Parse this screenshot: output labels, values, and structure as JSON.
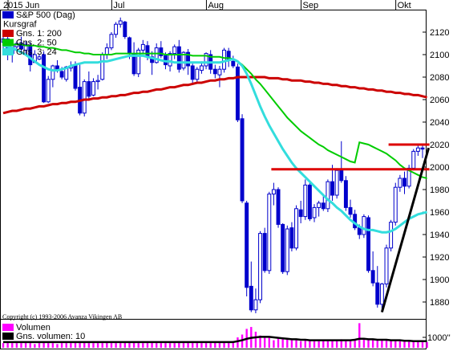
{
  "chart_data": {
    "type": "candlestick",
    "x_labels": [
      "2015 Jun",
      "Jul",
      "Aug",
      "Sep",
      "Okt"
    ],
    "y_ticks": [
      1880,
      1900,
      1920,
      1940,
      1960,
      1980,
      2000,
      2020,
      2040,
      2060,
      2080,
      2100,
      2120
    ],
    "ylim": [
      1865,
      2140
    ],
    "legend": [
      {
        "label": "S&P 500 (Dag)",
        "color": "#0000cc"
      },
      {
        "label": "Kursgraf",
        "color": ""
      },
      {
        "label": "Gns. 1: 200",
        "color": "#cc0000"
      },
      {
        "label": "Gns. 2: 50",
        "color": "#00cc00"
      },
      {
        "label": "Gns. 3: 24",
        "color": "#33dddd"
      }
    ],
    "copyright": "Copyright (c) 1993-2006 Avanza Vikingen AB",
    "candles": [
      [
        2111,
        2119,
        2105,
        2114
      ],
      [
        2114,
        2118,
        2095,
        2100
      ],
      [
        2101,
        2113,
        2093,
        2108
      ],
      [
        2107,
        2112,
        2104,
        2110
      ],
      [
        2110,
        2116,
        2103,
        2105
      ],
      [
        2104,
        2112,
        2099,
        2109
      ],
      [
        2108,
        2111,
        2085,
        2091
      ],
      [
        2093,
        2104,
        2093,
        2100
      ],
      [
        2096,
        2100,
        2095,
        2098
      ],
      [
        2100,
        2103,
        2057,
        2058
      ],
      [
        2058,
        2081,
        2057,
        2078
      ],
      [
        2078,
        2091,
        2071,
        2090
      ],
      [
        2090,
        2095,
        2084,
        2086
      ],
      [
        2085,
        2089,
        2078,
        2080
      ],
      [
        2078,
        2090,
        2076,
        2089
      ],
      [
        2088,
        2094,
        2085,
        2090
      ],
      [
        2090,
        2094,
        2068,
        2070
      ],
      [
        2071,
        2091,
        2046,
        2048
      ],
      [
        2048,
        2078,
        2045,
        2076
      ],
      [
        2076,
        2085,
        2061,
        2063
      ],
      [
        2064,
        2079,
        2063,
        2076
      ],
      [
        2076,
        2082,
        2069,
        2077
      ],
      [
        2078,
        2102,
        2077,
        2100
      ],
      [
        2100,
        2110,
        2096,
        2106
      ],
      [
        2106,
        2120,
        2104,
        2118
      ],
      [
        2118,
        2129,
        2115,
        2127
      ],
      [
        2127,
        2133,
        2124,
        2130
      ],
      [
        2129,
        2130,
        2114,
        2116
      ],
      [
        2115,
        2116,
        2096,
        2101
      ],
      [
        2101,
        2111,
        2081,
        2083
      ],
      [
        2083,
        2106,
        2080,
        2104
      ],
      [
        2104,
        2113,
        2101,
        2109
      ],
      [
        2108,
        2112,
        2095,
        2098
      ],
      [
        2098,
        2103,
        2082,
        2093
      ],
      [
        2093,
        2110,
        2092,
        2106
      ],
      [
        2106,
        2112,
        2097,
        2099
      ],
      [
        2099,
        2102,
        2087,
        2091
      ],
      [
        2090,
        2103,
        2085,
        2101
      ],
      [
        2101,
        2109,
        2096,
        2107
      ],
      [
        2107,
        2113,
        2084,
        2087
      ],
      [
        2088,
        2103,
        2086,
        2102
      ],
      [
        2102,
        2105,
        2082,
        2090
      ],
      [
        2090,
        2092,
        2075,
        2078
      ],
      [
        2078,
        2089,
        2076,
        2087
      ],
      [
        2086,
        2094,
        2083,
        2090
      ],
      [
        2090,
        2102,
        2087,
        2101
      ],
      [
        2100,
        2104,
        2083,
        2087
      ],
      [
        2087,
        2091,
        2079,
        2083
      ],
      [
        2082,
        2090,
        2071,
        2087
      ],
      [
        2087,
        2106,
        2084,
        2104
      ],
      [
        2103,
        2106,
        2089,
        2095
      ],
      [
        2094,
        2099,
        2088,
        2090
      ],
      [
        2089,
        2092,
        2040,
        2042
      ],
      [
        2043,
        2047,
        1968,
        1970
      ],
      [
        1968,
        1970,
        1885,
        1893
      ],
      [
        1894,
        1916,
        1871,
        1873
      ],
      [
        1873,
        1892,
        1870,
        1882
      ],
      [
        1882,
        1943,
        1879,
        1941
      ],
      [
        1941,
        1946,
        1906,
        1908
      ],
      [
        1908,
        1978,
        1905,
        1976
      ],
      [
        1976,
        1986,
        1966,
        1980
      ],
      [
        1980,
        1982,
        1946,
        1949
      ],
      [
        1949,
        1950,
        1905,
        1907
      ],
      [
        1907,
        1948,
        1904,
        1945
      ],
      [
        1946,
        1951,
        1925,
        1928
      ],
      [
        1928,
        1966,
        1926,
        1963
      ],
      [
        1962,
        1970,
        1950,
        1956
      ],
      [
        1956,
        1989,
        1953,
        1984
      ],
      [
        1984,
        1986,
        1952,
        1954
      ],
      [
        1955,
        1967,
        1951,
        1964
      ],
      [
        1964,
        1970,
        1956,
        1968
      ],
      [
        1968,
        1975,
        1961,
        1963
      ],
      [
        1963,
        1989,
        1960,
        1987
      ],
      [
        1987,
        2002,
        1970,
        1975
      ],
      [
        1975,
        1999,
        1972,
        1997
      ],
      [
        1997,
        2023,
        1986,
        1988
      ],
      [
        1988,
        1992,
        1961,
        1964
      ],
      [
        1964,
        1971,
        1955,
        1958
      ],
      [
        1958,
        1962,
        1944,
        1946
      ],
      [
        1946,
        1949,
        1936,
        1940
      ],
      [
        1940,
        1958,
        1937,
        1956
      ],
      [
        1955,
        1957,
        1906,
        1908
      ],
      [
        1908,
        1925,
        1894,
        1897
      ],
      [
        1897,
        1912,
        1875,
        1878
      ],
      [
        1878,
        1897,
        1871,
        1896
      ],
      [
        1896,
        1931,
        1893,
        1928
      ],
      [
        1928,
        1953,
        1925,
        1951
      ],
      [
        1951,
        1986,
        1948,
        1982
      ],
      [
        1982,
        1993,
        1978,
        1990
      ],
      [
        1990,
        1996,
        1976,
        1983
      ],
      [
        1983,
        2002,
        1981,
        1999
      ],
      [
        1999,
        2016,
        1997,
        2014
      ],
      [
        2014,
        2019,
        2010,
        2017
      ],
      [
        2017,
        2020,
        2008,
        2016
      ]
    ],
    "ma200": [
      2048,
      2049,
      2050,
      2050,
      2051,
      2052,
      2052,
      2053,
      2054,
      2054,
      2055,
      2056,
      2056,
      2057,
      2057,
      2058,
      2058,
      2059,
      2060,
      2060,
      2061,
      2061,
      2062,
      2062,
      2063,
      2063,
      2064,
      2064,
      2065,
      2066,
      2066,
      2067,
      2067,
      2068,
      2069,
      2069,
      2070,
      2071,
      2071,
      2072,
      2073,
      2073,
      2074,
      2075,
      2075,
      2076,
      2077,
      2077,
      2078,
      2078,
      2079,
      2079,
      2080,
      2080,
      2080,
      2080,
      2080,
      2080,
      2080,
      2079,
      2079,
      2079,
      2078,
      2078,
      2077,
      2077,
      2077,
      2076,
      2076,
      2075,
      2075,
      2074,
      2074,
      2073,
      2073,
      2072,
      2072,
      2071,
      2071,
      2070,
      2070,
      2069,
      2069,
      2068,
      2068,
      2067,
      2067,
      2066,
      2066,
      2065,
      2065,
      2064,
      2064,
      2063,
      2062
    ],
    "ma50": [
      2109,
      2109,
      2109,
      2109,
      2109,
      2108,
      2108,
      2108,
      2107,
      2107,
      2106,
      2106,
      2105,
      2104,
      2104,
      2103,
      2102,
      2102,
      2101,
      2101,
      2100,
      2100,
      2100,
      2100,
      2100,
      2101,
      2101,
      2101,
      2101,
      2101,
      2101,
      2101,
      2101,
      2101,
      2101,
      2101,
      2100,
      2100,
      2100,
      2100,
      2100,
      2100,
      2099,
      2099,
      2099,
      2099,
      2098,
      2098,
      2098,
      2097,
      2097,
      2096,
      2094,
      2091,
      2087,
      2083,
      2078,
      2074,
      2069,
      2064,
      2059,
      2054,
      2049,
      2044,
      2040,
      2036,
      2032,
      2029,
      2026,
      2023,
      2020,
      2018,
      2015,
      2013,
      2011,
      2009,
      2007,
      2005,
      2004,
      2022,
      2021,
      2020,
      2018,
      2016,
      2014,
      2012,
      2009,
      2006,
      2002,
      1999,
      1997,
      1995,
      1993,
      1991,
      1990
    ],
    "ma24": [
      2108,
      2107,
      2106,
      2104,
      2102,
      2100,
      2097,
      2094,
      2091,
      2089,
      2087,
      2086,
      2086,
      2087,
      2088,
      2090,
      2091,
      2092,
      2093,
      2093,
      2093,
      2093,
      2094,
      2094,
      2095,
      2096,
      2097,
      2098,
      2099,
      2099,
      2099,
      2099,
      2098,
      2097,
      2096,
      2095,
      2094,
      2094,
      2093,
      2093,
      2093,
      2093,
      2093,
      2093,
      2093,
      2093,
      2093,
      2093,
      2093,
      2094,
      2095,
      2096,
      2094,
      2090,
      2083,
      2074,
      2064,
      2054,
      2045,
      2037,
      2030,
      2023,
      2016,
      2010,
      2004,
      1999,
      1995,
      1991,
      1987,
      1983,
      1979,
      1975,
      1971,
      1968,
      1964,
      1961,
      1957,
      1953,
      1950,
      1947,
      1945,
      1944,
      1944,
      1943,
      1942,
      1942,
      1943,
      1945,
      1948,
      1951,
      1954,
      1956,
      1958,
      1959,
      1960
    ],
    "resistance_lines": [
      {
        "from_index": 60,
        "to_index": 94,
        "value": 1998
      },
      {
        "from_index": 86,
        "to_index": 94,
        "value": 2020
      }
    ],
    "trendline": {
      "from_index": 84,
      "from_value": 1871,
      "to_index": 94,
      "to_value": 2017
    },
    "volume_legend": [
      {
        "label": "Volumen",
        "color": "#ff00ff"
      },
      {
        "label": "Gns. volumen: 10",
        "color": "#000000"
      }
    ],
    "volume_tick": "1000''",
    "volume": [
      0.5,
      0.6,
      0.5,
      0.5,
      0.5,
      0.6,
      0.5,
      0.4,
      0.5,
      0.6,
      0.5,
      0.5,
      0.4,
      0.5,
      0.5,
      0.5,
      0.6,
      0.7,
      0.6,
      0.5,
      0.5,
      0.5,
      0.5,
      0.6,
      0.5,
      0.5,
      0.5,
      0.6,
      0.6,
      0.6,
      0.5,
      0.5,
      0.5,
      0.6,
      0.5,
      0.5,
      0.5,
      0.5,
      0.5,
      0.6,
      0.5,
      0.6,
      0.6,
      0.5,
      0.5,
      0.5,
      0.5,
      0.6,
      0.6,
      0.6,
      0.6,
      0.7,
      1.1,
      1.4,
      2.0,
      2.2,
      1.7,
      1.3,
      1.1,
      1.2,
      0.8,
      1.0,
      0.9,
      0.9,
      0.8,
      0.9,
      0.7,
      0.8,
      0.8,
      0.7,
      0.7,
      0.7,
      0.7,
      0.8,
      0.8,
      0.9,
      0.7,
      0.7,
      0.8,
      2.6,
      1.0,
      0.9,
      0.8,
      0.8,
      0.9,
      0.8,
      0.8,
      0.8,
      0.7,
      0.7,
      0.7,
      0.7,
      0.7,
      0.6,
      0.6
    ],
    "avg_volume": [
      0.6,
      0.6,
      0.6,
      0.6,
      0.6,
      0.6,
      0.6,
      0.6,
      0.6,
      0.6,
      0.6,
      0.6,
      0.6,
      0.6,
      0.6,
      0.6,
      0.6,
      0.6,
      0.6,
      0.6,
      0.6,
      0.6,
      0.6,
      0.6,
      0.6,
      0.6,
      0.6,
      0.6,
      0.6,
      0.6,
      0.6,
      0.6,
      0.6,
      0.6,
      0.6,
      0.6,
      0.6,
      0.6,
      0.6,
      0.6,
      0.6,
      0.6,
      0.6,
      0.6,
      0.6,
      0.6,
      0.6,
      0.6,
      0.6,
      0.6,
      0.6,
      0.6,
      0.7,
      0.8,
      0.95,
      1.05,
      1.1,
      1.15,
      1.15,
      1.15,
      1.1,
      1.05,
      1.0,
      0.95,
      0.9,
      0.9,
      0.85,
      0.85,
      0.8,
      0.8,
      0.8,
      0.8,
      0.8,
      0.8,
      0.8,
      0.8,
      0.8,
      0.8,
      0.85,
      0.95,
      0.95,
      0.9,
      0.9,
      0.85,
      0.85,
      0.85,
      0.8,
      0.8,
      0.8,
      0.75,
      0.75,
      0.7,
      0.7,
      0.7,
      0.7
    ]
  }
}
